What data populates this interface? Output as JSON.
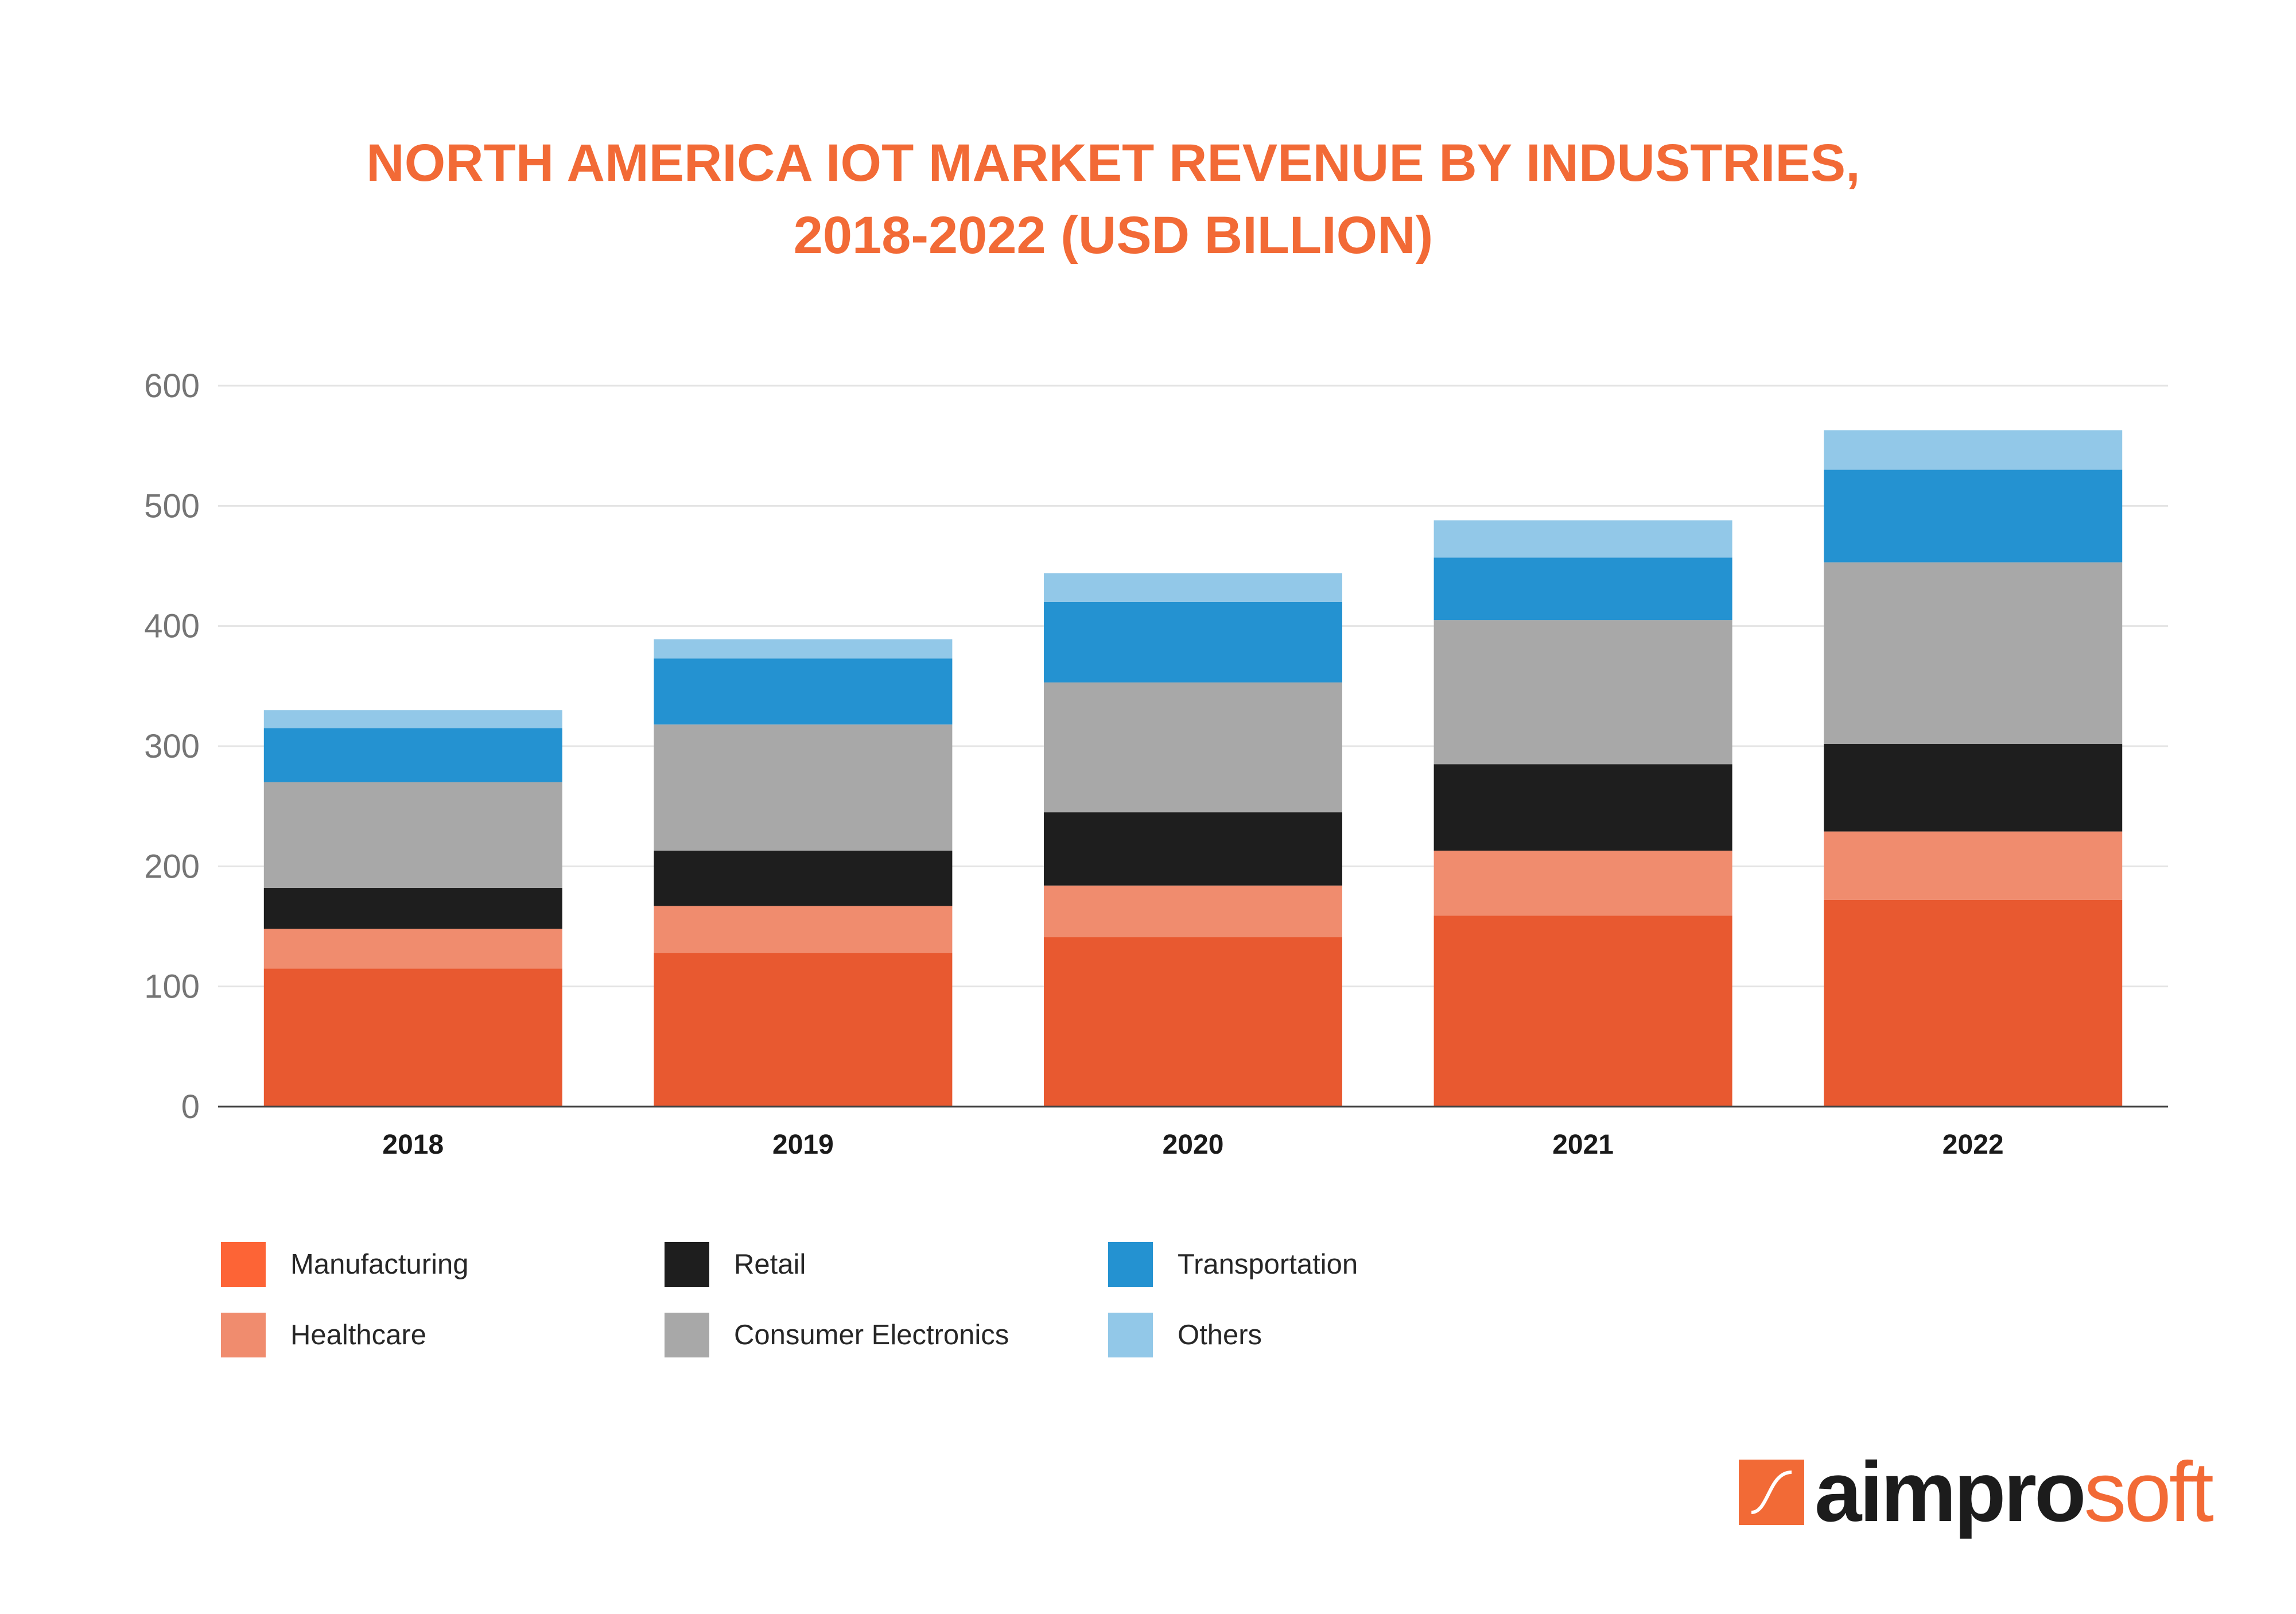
{
  "chart_data": {
    "type": "bar",
    "stacked": true,
    "title_lines": [
      "NORTH AMERICA IOT MARKET REVENUE BY INDUSTRIES,",
      "2018-2022 (USD BILLION)"
    ],
    "categories": [
      "2018",
      "2019",
      "2020",
      "2021",
      "2022"
    ],
    "series": [
      {
        "name": "Manufacturing",
        "color": "#e85930",
        "values": [
          115,
          128,
          141,
          159,
          172
        ]
      },
      {
        "name": "Healthcare",
        "color": "#f08c6e",
        "values": [
          33,
          39,
          43,
          54,
          57
        ]
      },
      {
        "name": "Retail",
        "color": "#1e1e1e",
        "values": [
          34,
          46,
          61,
          72,
          73
        ]
      },
      {
        "name": "Consumer Electronics",
        "color": "#a8a8a8",
        "values": [
          88,
          105,
          108,
          120,
          151
        ]
      },
      {
        "name": "Transportation",
        "color": "#2492d1",
        "values": [
          45,
          55,
          67,
          52,
          77
        ]
      },
      {
        "name": "Others",
        "color": "#92c8e8",
        "values": [
          15,
          16,
          24,
          31,
          33
        ]
      }
    ],
    "ylim": [
      0,
      600
    ],
    "yticks": [
      0,
      100,
      200,
      300,
      400,
      500,
      600
    ],
    "grid": true,
    "legend_position": "bottom-left"
  },
  "legend_swatch_colors": [
    "#fd6436",
    "#1e1e1e",
    "#2492d1",
    "#f08c6e",
    "#a8a8a8",
    "#92c8e8"
  ],
  "brand": {
    "logo_part1": "aimpro",
    "logo_part2": "soft"
  }
}
